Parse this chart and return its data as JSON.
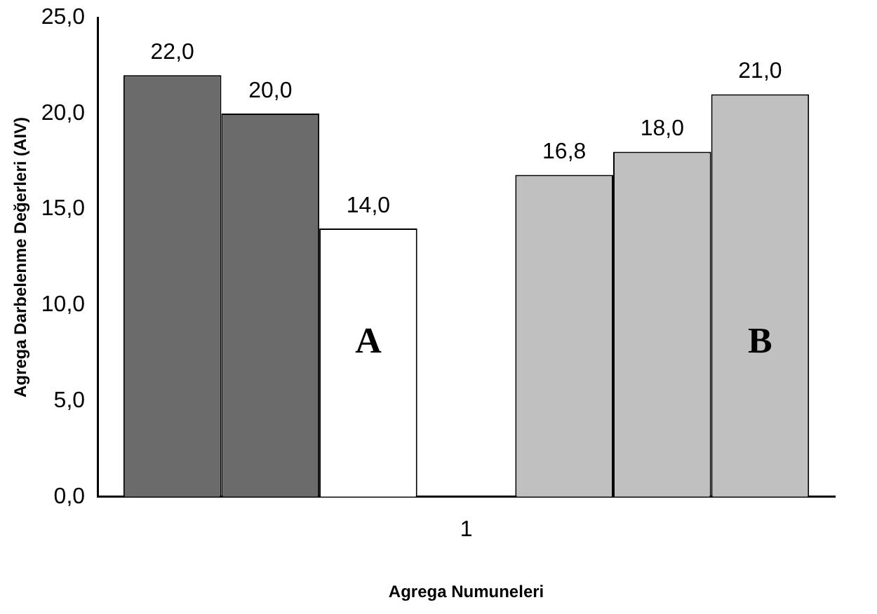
{
  "chart_data": {
    "type": "bar",
    "xlabel": "Agrega Numuneleri",
    "ylabel": "Agrega Darbelenme Değerleri (AIV)",
    "categories": [
      "1"
    ],
    "series": [
      {
        "color": "#6b6b6b",
        "values": [
          22.0
        ],
        "value_labels": [
          "22,0"
        ]
      },
      {
        "color": "#6b6b6b",
        "values": [
          20.0
        ],
        "value_labels": [
          "20,0"
        ]
      },
      {
        "color": "#ffffff",
        "values": [
          14.0
        ],
        "value_labels": [
          "14,0"
        ]
      },
      {
        "color": "#ffffff",
        "values": [
          null
        ],
        "value_labels": [
          null
        ]
      },
      {
        "color": "#c0c0c0",
        "values": [
          16.8
        ],
        "value_labels": [
          "16,8"
        ]
      },
      {
        "color": "#c0c0c0",
        "values": [
          18.0
        ],
        "value_labels": [
          "18,0"
        ]
      },
      {
        "color": "#c0c0c0",
        "values": [
          21.0
        ],
        "value_labels": [
          "21,0"
        ]
      }
    ],
    "ylim": [
      0,
      25
    ],
    "yticks": [
      {
        "value": 0,
        "label": "0,0"
      },
      {
        "value": 5,
        "label": "5,0"
      },
      {
        "value": 10,
        "label": "10,0"
      },
      {
        "value": 15,
        "label": "15,0"
      },
      {
        "value": 20,
        "label": "20,0"
      },
      {
        "value": 25,
        "label": "25,0"
      }
    ],
    "grid": false,
    "legend": false,
    "annotations": [
      "A",
      "B"
    ]
  }
}
